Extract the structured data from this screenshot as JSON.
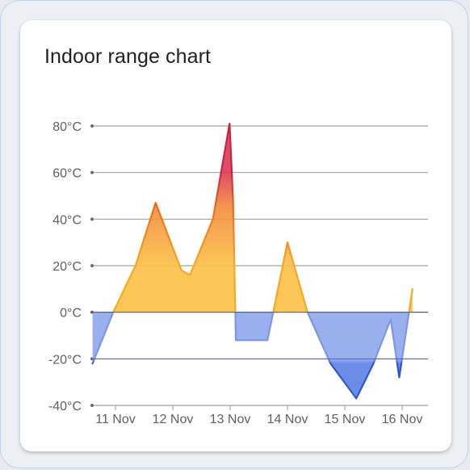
{
  "card": {
    "title": "Indoor range chart"
  },
  "chart_data": {
    "type": "area",
    "title": "Indoor range chart",
    "xlabel": "",
    "ylabel": "",
    "unit": "°C",
    "ylim": [
      -40,
      80
    ],
    "y_ticks": [
      80,
      60,
      40,
      20,
      0,
      -20,
      -40
    ],
    "y_tick_labels": [
      "80°C",
      "60°C",
      "40°C",
      "20°C",
      "0°C",
      "-20°C",
      "-40°C"
    ],
    "x_ticks": [
      "11 Nov",
      "12 Nov",
      "13 Nov",
      "14 Nov",
      "15 Nov",
      "16 Nov"
    ],
    "grid": true,
    "baseline": 0,
    "series": [
      {
        "x": [
          10.6,
          10.96,
          11.35,
          11.7,
          12.15,
          12.3,
          12.7,
          12.99,
          13.05,
          13.1,
          13.6,
          13.65,
          14.0,
          14.35,
          14.75,
          15.2,
          15.5,
          15.8,
          15.95,
          16.18
        ],
        "values": [
          -22,
          0,
          20,
          47,
          18,
          16,
          40,
          81,
          48,
          -12,
          -12,
          -12,
          30,
          0,
          -22,
          -37,
          -22,
          -3,
          -28,
          10
        ]
      }
    ],
    "colors": {
      "hot": "#db3a57",
      "warm": "#f28b3c",
      "mild": "#fbbf45",
      "cool": "#8fa7ec",
      "cold": "#5b7fe6",
      "line_hot": "#c9243f",
      "line_warm": "#e96a1e",
      "line_mild": "#f4a825",
      "line_cool": "#7c96e2",
      "line_cold": "#2e55cd"
    }
  }
}
